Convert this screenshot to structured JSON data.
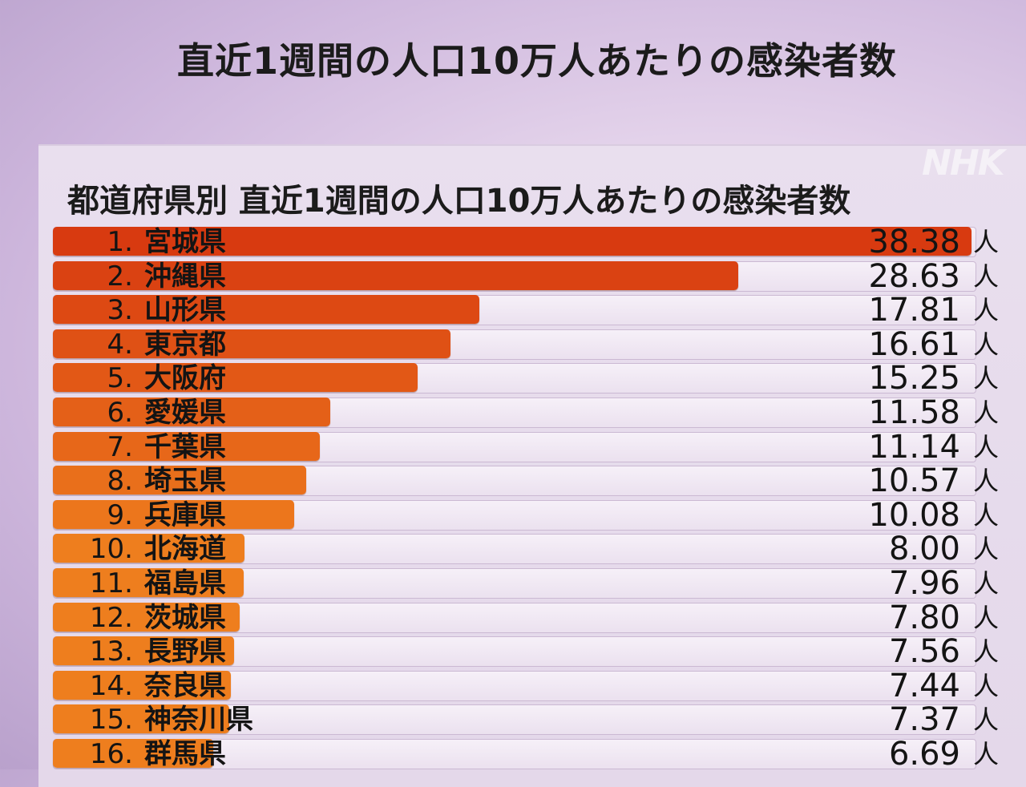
{
  "header": {
    "title": "直近1週間の人口10万人あたりの感染者数",
    "logo": "NHK"
  },
  "chart_data": {
    "type": "bar",
    "orientation": "horizontal",
    "title": "都道府県別 直近1週間の人口10万人あたりの感染者数",
    "unit": "人",
    "xlim": [
      0,
      38.38
    ],
    "colors": {
      "top": "#d83a10",
      "low": "#ee7e1e"
    },
    "categories": [
      "宮城県",
      "沖縄県",
      "山形県",
      "東京都",
      "大阪府",
      "愛媛県",
      "千葉県",
      "埼玉県",
      "兵庫県",
      "北海道",
      "福島県",
      "茨城県",
      "長野県",
      "奈良県",
      "神奈川県",
      "群馬県"
    ],
    "ranks": [
      "1.",
      "2.",
      "3.",
      "4.",
      "5.",
      "6.",
      "7.",
      "8.",
      "9.",
      "10.",
      "11.",
      "12.",
      "13.",
      "14.",
      "15.",
      "16."
    ],
    "values": [
      38.38,
      28.63,
      17.81,
      16.61,
      15.25,
      11.58,
      11.14,
      10.57,
      10.08,
      8.0,
      7.96,
      7.8,
      7.56,
      7.44,
      7.37,
      6.69
    ],
    "value_labels": [
      "38.38",
      "28.63",
      "17.81",
      "16.61",
      "15.25",
      "11.58",
      "11.14",
      "10.57",
      "10.08",
      "8.00",
      "7.96",
      "7.80",
      "7.56",
      "7.44",
      "7.37",
      "6.69"
    ]
  }
}
